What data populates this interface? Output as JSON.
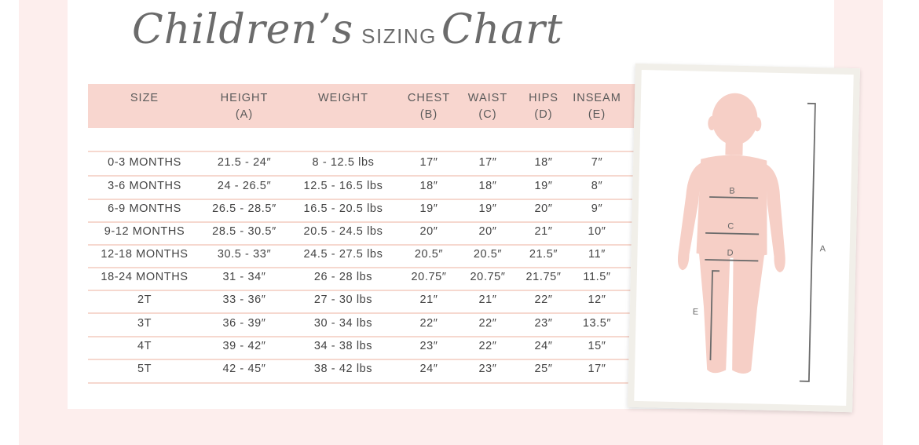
{
  "title": {
    "script_part1": "Children’s",
    "caps": "SIZING",
    "script_part2": "Chart"
  },
  "headers": [
    {
      "line1": "SIZE",
      "line2": ""
    },
    {
      "line1": "HEIGHT",
      "line2": "(A)"
    },
    {
      "line1": "WEIGHT",
      "line2": ""
    },
    {
      "line1": "CHEST",
      "line2": "(B)"
    },
    {
      "line1": "WAIST",
      "line2": "(C)"
    },
    {
      "line1": "HIPS",
      "line2": "(D)"
    },
    {
      "line1": "INSEAM",
      "line2": "(E)"
    }
  ],
  "rows": [
    [
      "0-3 MONTHS",
      "21.5 - 24″",
      "8 - 12.5 lbs",
      "17″",
      "17″",
      "18″",
      "7″"
    ],
    [
      "3-6 MONTHS",
      "24 - 26.5″",
      "12.5 - 16.5 lbs",
      "18″",
      "18″",
      "19″",
      "8″"
    ],
    [
      "6-9 MONTHS",
      "26.5 - 28.5″",
      "16.5 - 20.5 lbs",
      "19″",
      "19″",
      "20″",
      "9″"
    ],
    [
      "9-12 MONTHS",
      "28.5 - 30.5″",
      "20.5 - 24.5 lbs",
      "20″",
      "20″",
      "21″",
      "10″"
    ],
    [
      "12-18 MONTHS",
      "30.5 - 33″",
      "24.5 - 27.5 lbs",
      "20.5″",
      "20.5″",
      "21.5″",
      "11″"
    ],
    [
      "18-24 MONTHS",
      "31 - 34″",
      "26 - 28 lbs",
      "20.75″",
      "20.75″",
      "21.75″",
      "11.5″"
    ],
    [
      "2T",
      "33 - 36″",
      "27 - 30 lbs",
      "21″",
      "21″",
      "22″",
      "12″"
    ],
    [
      "3T",
      "36 - 39″",
      "30 - 34 lbs",
      "22″",
      "22″",
      "23″",
      "13.5″"
    ],
    [
      "4T",
      "39 - 42″",
      "34 - 38 lbs",
      "23″",
      "22″",
      "24″",
      "15″"
    ],
    [
      "5T",
      "42 - 45″",
      "38 - 42 lbs",
      "24″",
      "23″",
      "25″",
      "17″"
    ]
  ],
  "figure": {
    "labels": {
      "a": "A",
      "b": "B",
      "c": "C",
      "d": "D",
      "e": "E"
    },
    "silhouette_icon": "child-silhouette-icon"
  },
  "colors": {
    "background_pink": "#fdeeed",
    "header_bar": "#f8d6cf",
    "row_line": "#f6d8cf",
    "silhouette": "#f6cfc6",
    "text": "#444444"
  }
}
